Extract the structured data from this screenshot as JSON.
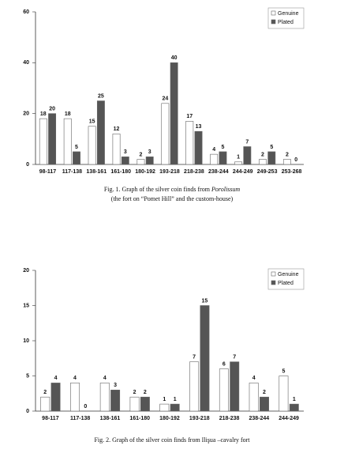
{
  "chart_data": [
    {
      "type": "bar",
      "categories": [
        "98-117",
        "117-138",
        "138-161",
        "161-180",
        "180-192",
        "193-218",
        "218-238",
        "238-244",
        "244-249",
        "249-253",
        "253-268"
      ],
      "series": [
        {
          "name": "Genuine",
          "color": "#ffffff",
          "values": [
            18,
            18,
            15,
            12,
            2,
            24,
            17,
            4,
            1,
            2,
            2
          ]
        },
        {
          "name": "Plated",
          "color": "#555555",
          "values": [
            20,
            5,
            25,
            3,
            3,
            40,
            13,
            5,
            7,
            5,
            0
          ]
        }
      ],
      "ylim": [
        0,
        60
      ],
      "yticks": [
        0,
        20,
        40,
        60
      ],
      "legend": "top-right",
      "caption": "Fig. 1. Graph of the silver coin finds from ",
      "caption_italic": "Porolissum",
      "subcaption": "(the fort on “Pomet Hill” and the custom-house)"
    },
    {
      "type": "bar",
      "categories": [
        "98-117",
        "117-138",
        "138-161",
        "161-180",
        "180-192",
        "193-218",
        "218-238",
        "238-244",
        "244-249"
      ],
      "series": [
        {
          "name": "Genuine",
          "color": "#ffffff",
          "values": [
            2,
            4,
            4,
            2,
            1,
            7,
            6,
            4,
            5
          ]
        },
        {
          "name": "Plated",
          "color": "#555555",
          "values": [
            4,
            0,
            3,
            2,
            1,
            15,
            7,
            2,
            1
          ]
        }
      ],
      "ylim": [
        0,
        20
      ],
      "yticks": [
        0,
        5,
        10,
        15,
        20
      ],
      "legend": "top-right",
      "caption": "Fig. 2. Graph of the silver coin finds from Ilişua –cavalry fort"
    }
  ]
}
